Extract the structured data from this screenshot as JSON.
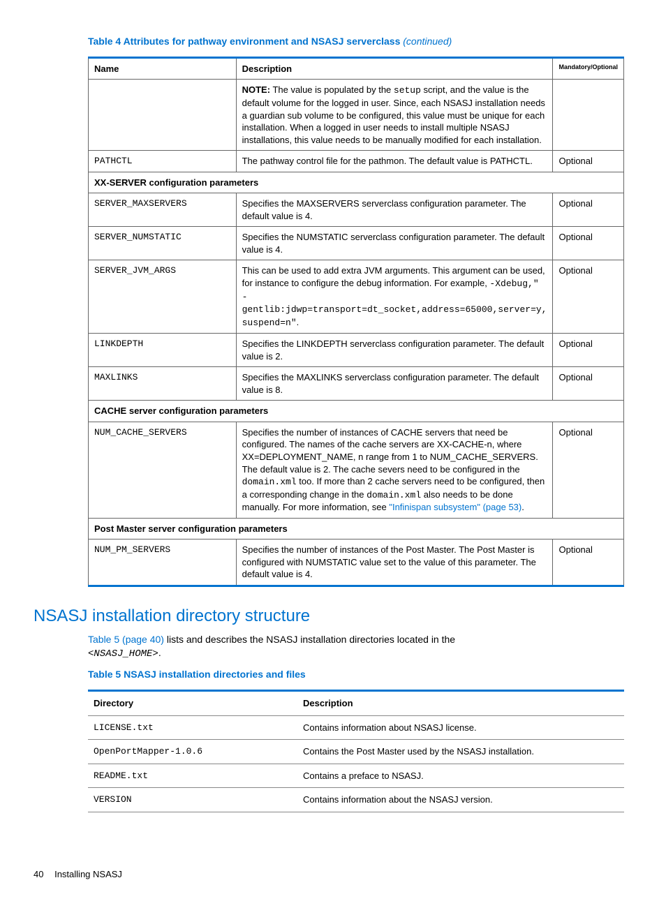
{
  "table4": {
    "caption_main": "Table 4 Attributes for pathway environment and NSASJ serverclass",
    "caption_cont": "(continued)",
    "headers": {
      "name": "Name",
      "desc": "Description",
      "mo": "Mandatory/Optional"
    },
    "note_label": "NOTE:",
    "note_text": " The value is populated by the ",
    "note_code": "setup",
    "note_text2": " script, and the value is the default volume for the logged in user. Since, each NSASJ installation needs a guardian sub volume to be configured, this value must be unique for each installation. When a logged in user needs to install multiple NSASJ installations, this value needs to be manually modified for each installation.",
    "rows": {
      "pathctl": {
        "name": "PATHCTL",
        "desc": "The pathway control file for the pathmon. The default value is PATHCTL.",
        "mo": "Optional"
      },
      "xx_section": "XX-SERVER configuration parameters",
      "maxservers": {
        "name": "SERVER_MAXSERVERS",
        "desc": "Specifies the MAXSERVERS serverclass configuration parameter. The default value is 4.",
        "mo": "Optional"
      },
      "numstatic": {
        "name": "SERVER_NUMSTATIC",
        "desc": "Specifies the NUMSTATIC serverclass configuration parameter. The default value is 4.",
        "mo": "Optional"
      },
      "jvmargs": {
        "name": "SERVER_JVM_ARGS",
        "d1": "This can be used to add extra JVM arguments. This argument can be used, for instance to configure the debug information. For example, ",
        "c1": "-Xdebug,\"",
        "c2": "-gentlib:jdwp=transport=dt_socket,address=65000,server=y,",
        "c3": "suspend=n\"",
        "d2": ".",
        "mo": "Optional"
      },
      "linkdepth": {
        "name": "LINKDEPTH",
        "desc": "Specifies the LINKDEPTH serverclass configuration parameter. The default value is 2.",
        "mo": "Optional"
      },
      "maxlinks": {
        "name": "MAXLINKS",
        "desc": "Specifies the MAXLINKS serverclass configuration parameter. The default value is 8.",
        "mo": "Optional"
      },
      "cache_section": "CACHE server configuration parameters",
      "numcache": {
        "name": "NUM_CACHE_SERVERS",
        "d1": "Specifies the number of instances of CACHE servers that need be configured. The names of the cache servers are XX-CACHE-n, where XX=DEPLOYMENT_NAME, n range from 1 to NUM_CACHE_SERVERS. The default value is 2. The cache severs need to be configured in the ",
        "c1": "domain.xml",
        "d2": " too. If more than 2 cache servers need to be configured, then a corresponding change in the ",
        "c2": "domain.xml",
        "d3": " also needs to be done manually. For more information, see ",
        "link": "\"Infinispan subsystem\" (page 53)",
        "d4": ".",
        "mo": "Optional"
      },
      "pm_section": "Post Master server configuration parameters",
      "numpm": {
        "name": "NUM_PM_SERVERS",
        "desc": "Specifies the number of instances of the Post Master. The Post Master is configured with NUMSTATIC value set to the value of this parameter. The default value is 4.",
        "mo": "Optional"
      }
    }
  },
  "section_heading": "NSASJ installation directory structure",
  "body": {
    "link": "Table 5 (page 40)",
    "text": " lists and describes the NSASJ installation directories located in the ",
    "code": "<NSASJ_HOME>",
    "end": "."
  },
  "table5": {
    "caption": "Table 5 NSASJ installation directories and files",
    "headers": {
      "dir": "Directory",
      "desc": "Description"
    },
    "rows": {
      "r1": {
        "dir": "LICENSE.txt",
        "desc": "Contains information about NSASJ license."
      },
      "r2": {
        "dir": "OpenPortMapper-1.0.6",
        "desc": "Contains the Post Master used by the NSASJ installation."
      },
      "r3": {
        "dir": "README.txt",
        "desc": "Contains a preface to NSASJ."
      },
      "r4": {
        "dir": "VERSION",
        "desc": "Contains information about the NSASJ version."
      }
    }
  },
  "footer": {
    "page": "40",
    "title": "Installing NSASJ"
  }
}
